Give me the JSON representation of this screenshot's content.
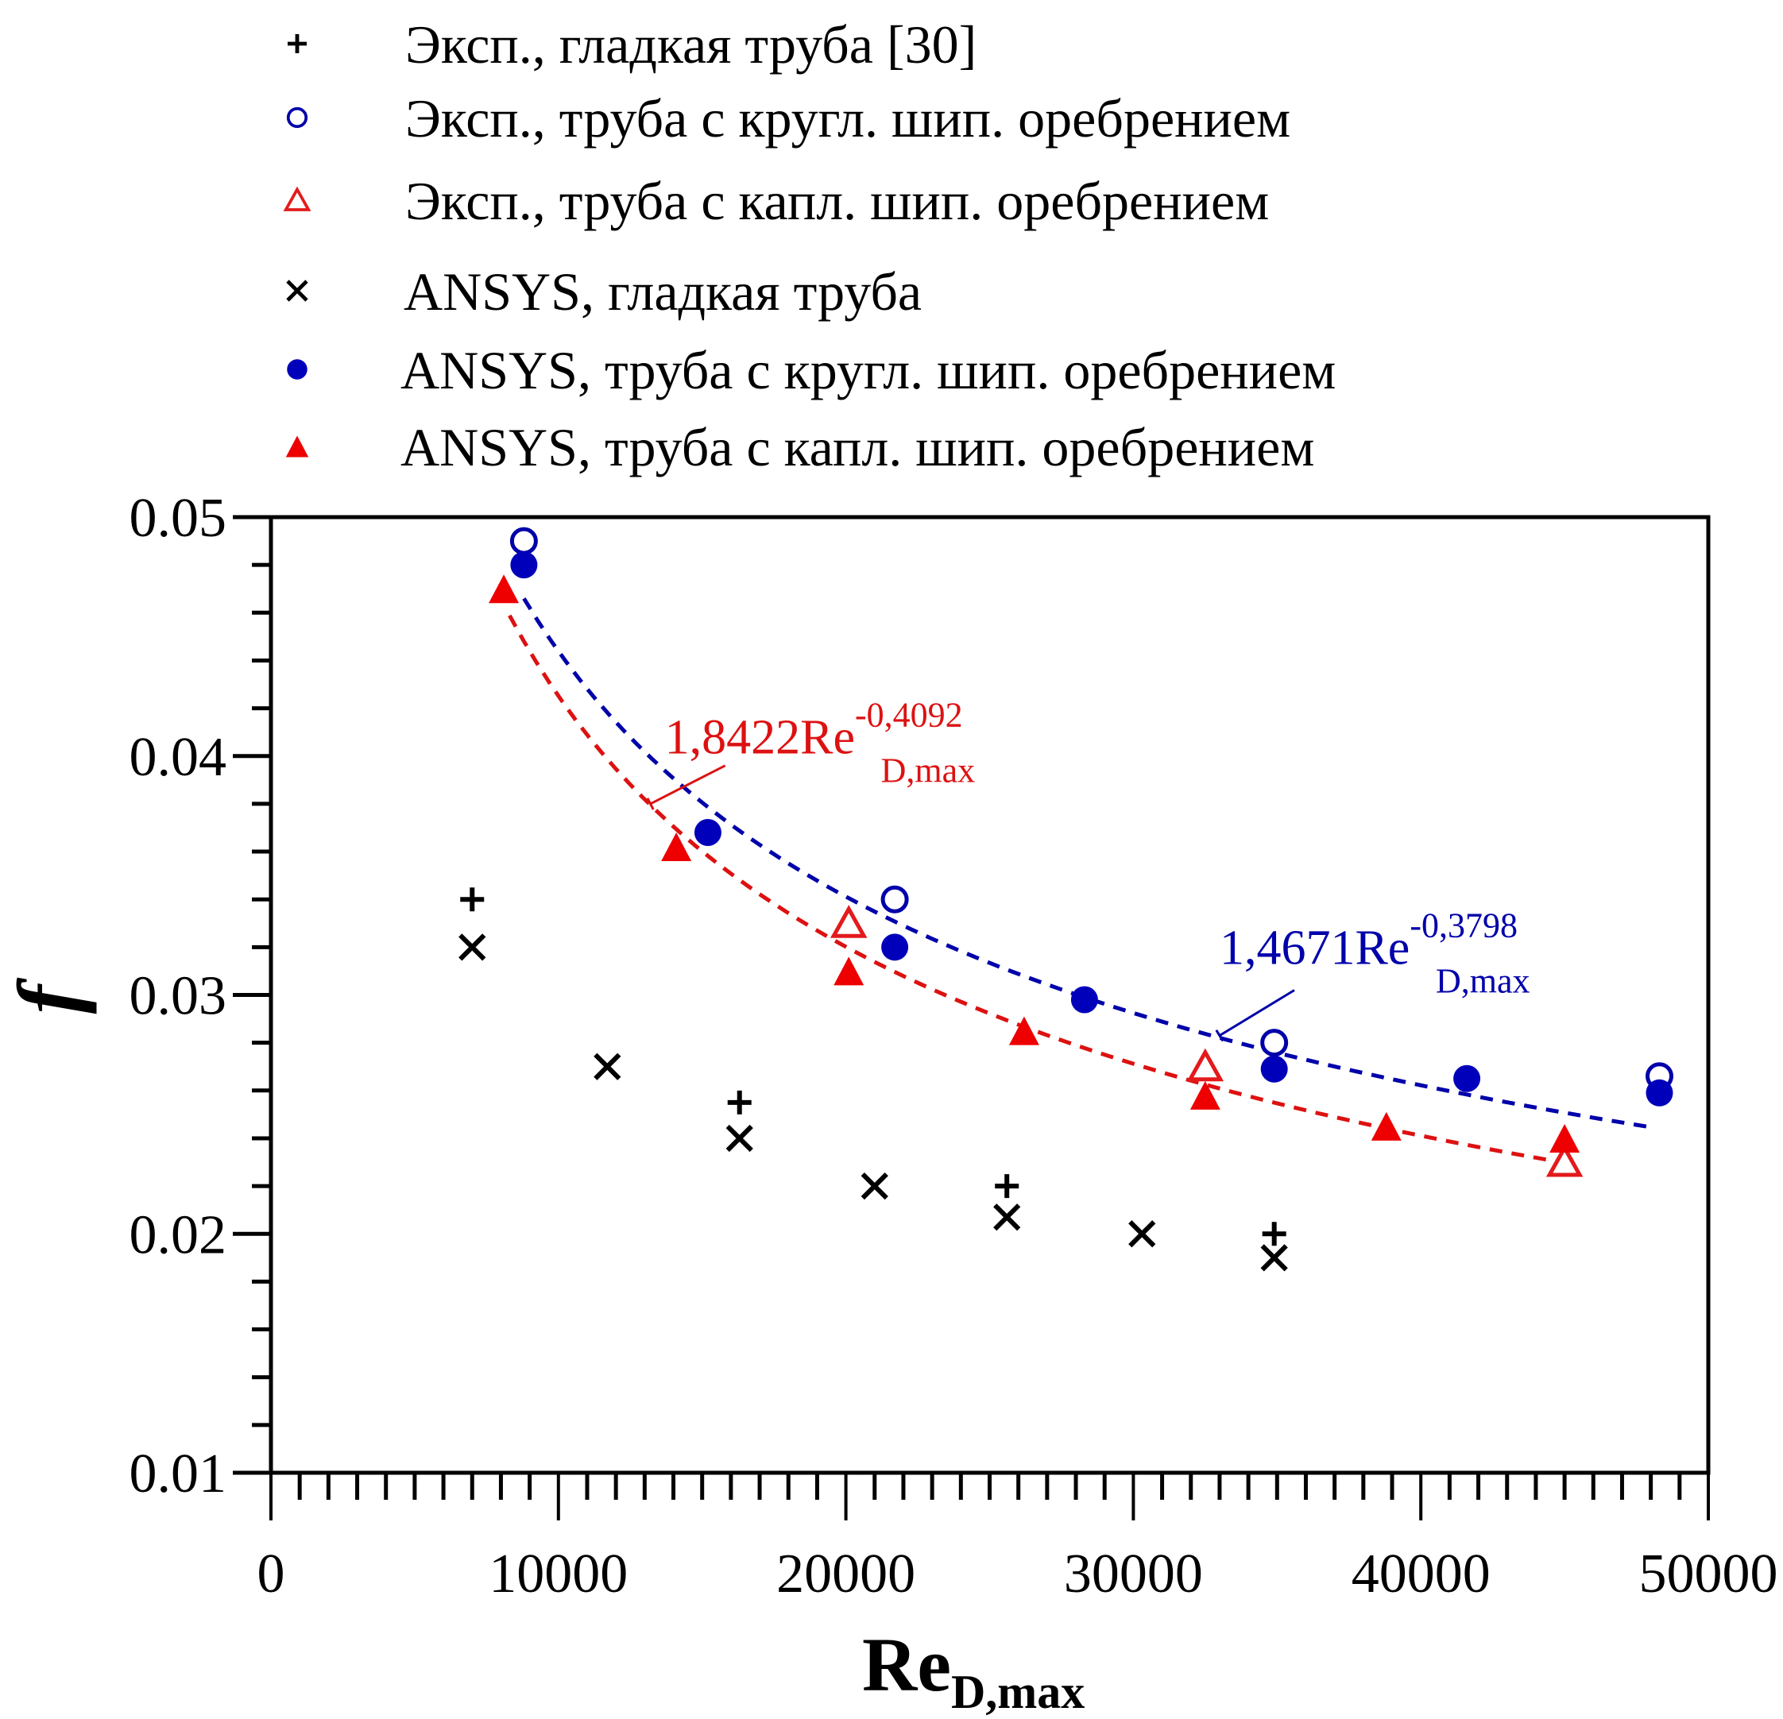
{
  "chart_data": {
    "type": "scatter",
    "title": "",
    "xlabel": "Re",
    "xlabel_subscript": "D,max",
    "ylabel": "f",
    "xlim": [
      0,
      50000
    ],
    "ylim": [
      0.01,
      0.05
    ],
    "x_ticks": [
      0,
      10000,
      20000,
      30000,
      40000,
      50000
    ],
    "x_tick_labels": [
      "0",
      "10000",
      "20000",
      "30000",
      "40000",
      "50000"
    ],
    "x_minor_step": 1000,
    "y_ticks": [
      0.01,
      0.02,
      0.03,
      0.04,
      0.05
    ],
    "y_tick_labels": [
      "0.01",
      "0.02",
      "0.03",
      "0.04",
      "0.05"
    ],
    "y_minor_step": 0.002,
    "grid": false,
    "legend_position": "top",
    "series": [
      {
        "name": "Эксп., гладкая труба [30]",
        "marker": "plus",
        "color": "#000000",
        "x": [
          7000,
          16300,
          25600,
          34900
        ],
        "y": [
          0.034,
          0.0255,
          0.022,
          0.02
        ]
      },
      {
        "name": "Эксп., труба с кругл. шип. оребрением",
        "marker": "circle-open",
        "color": "#0000aa",
        "x": [
          8800,
          21700,
          34900,
          48300
        ],
        "y": [
          0.049,
          0.034,
          0.028,
          0.0266
        ]
      },
      {
        "name": "Эксп., труба с капл. шип. оребрением",
        "marker": "triangle-open",
        "color": "#e31a1c",
        "x": [
          20100,
          32500,
          45000
        ],
        "y": [
          0.033,
          0.027,
          0.023
        ]
      },
      {
        "name": "ANSYS, гладкая труба",
        "marker": "cross",
        "color": "#000000",
        "x": [
          7000,
          11700,
          16300,
          21000,
          25600,
          30300,
          34900
        ],
        "y": [
          0.032,
          0.027,
          0.024,
          0.022,
          0.0207,
          0.02,
          0.019
        ]
      },
      {
        "name": "ANSYS, труба с кругл. шип. оребрением",
        "marker": "circle-filled",
        "color": "#0000bb",
        "x": [
          8800,
          15200,
          21700,
          28300,
          34900,
          41600,
          48300
        ],
        "y": [
          0.048,
          0.0368,
          0.032,
          0.0298,
          0.0269,
          0.0265,
          0.0259
        ]
      },
      {
        "name": "ANSYS, труба с капл. шип. оребрением",
        "marker": "triangle-filled",
        "color": "#ee0000",
        "x": [
          8100,
          14100,
          20100,
          26200,
          32500,
          38800,
          45000
        ],
        "y": [
          0.047,
          0.0362,
          0.031,
          0.0285,
          0.0258,
          0.0245,
          0.024
        ]
      }
    ],
    "fits": [
      {
        "name": "blue-fit",
        "color": "#0000aa",
        "coef": 1.4671,
        "exp": -0.3798,
        "x_range": [
          8800,
          48000
        ],
        "label_main": "1,4671Re",
        "label_sup": "-0,3798",
        "label_sub": "D,max",
        "label_at": [
          33000,
          0.0313
        ],
        "leader_from": [
          33000,
          0.0283
        ],
        "leader_to": [
          35600,
          0.0302
        ]
      },
      {
        "name": "red-fit",
        "color": "#dd1111",
        "coef": 1.8422,
        "exp": -0.4092,
        "x_range": [
          8300,
          45200
        ],
        "label_main": "1,8422Re",
        "label_sup": "-0,4092",
        "label_sub": "D,max",
        "label_at": [
          13700,
          0.0401
        ],
        "leader_from": [
          13200,
          0.038
        ],
        "leader_to": [
          15800,
          0.0396
        ]
      }
    ]
  }
}
